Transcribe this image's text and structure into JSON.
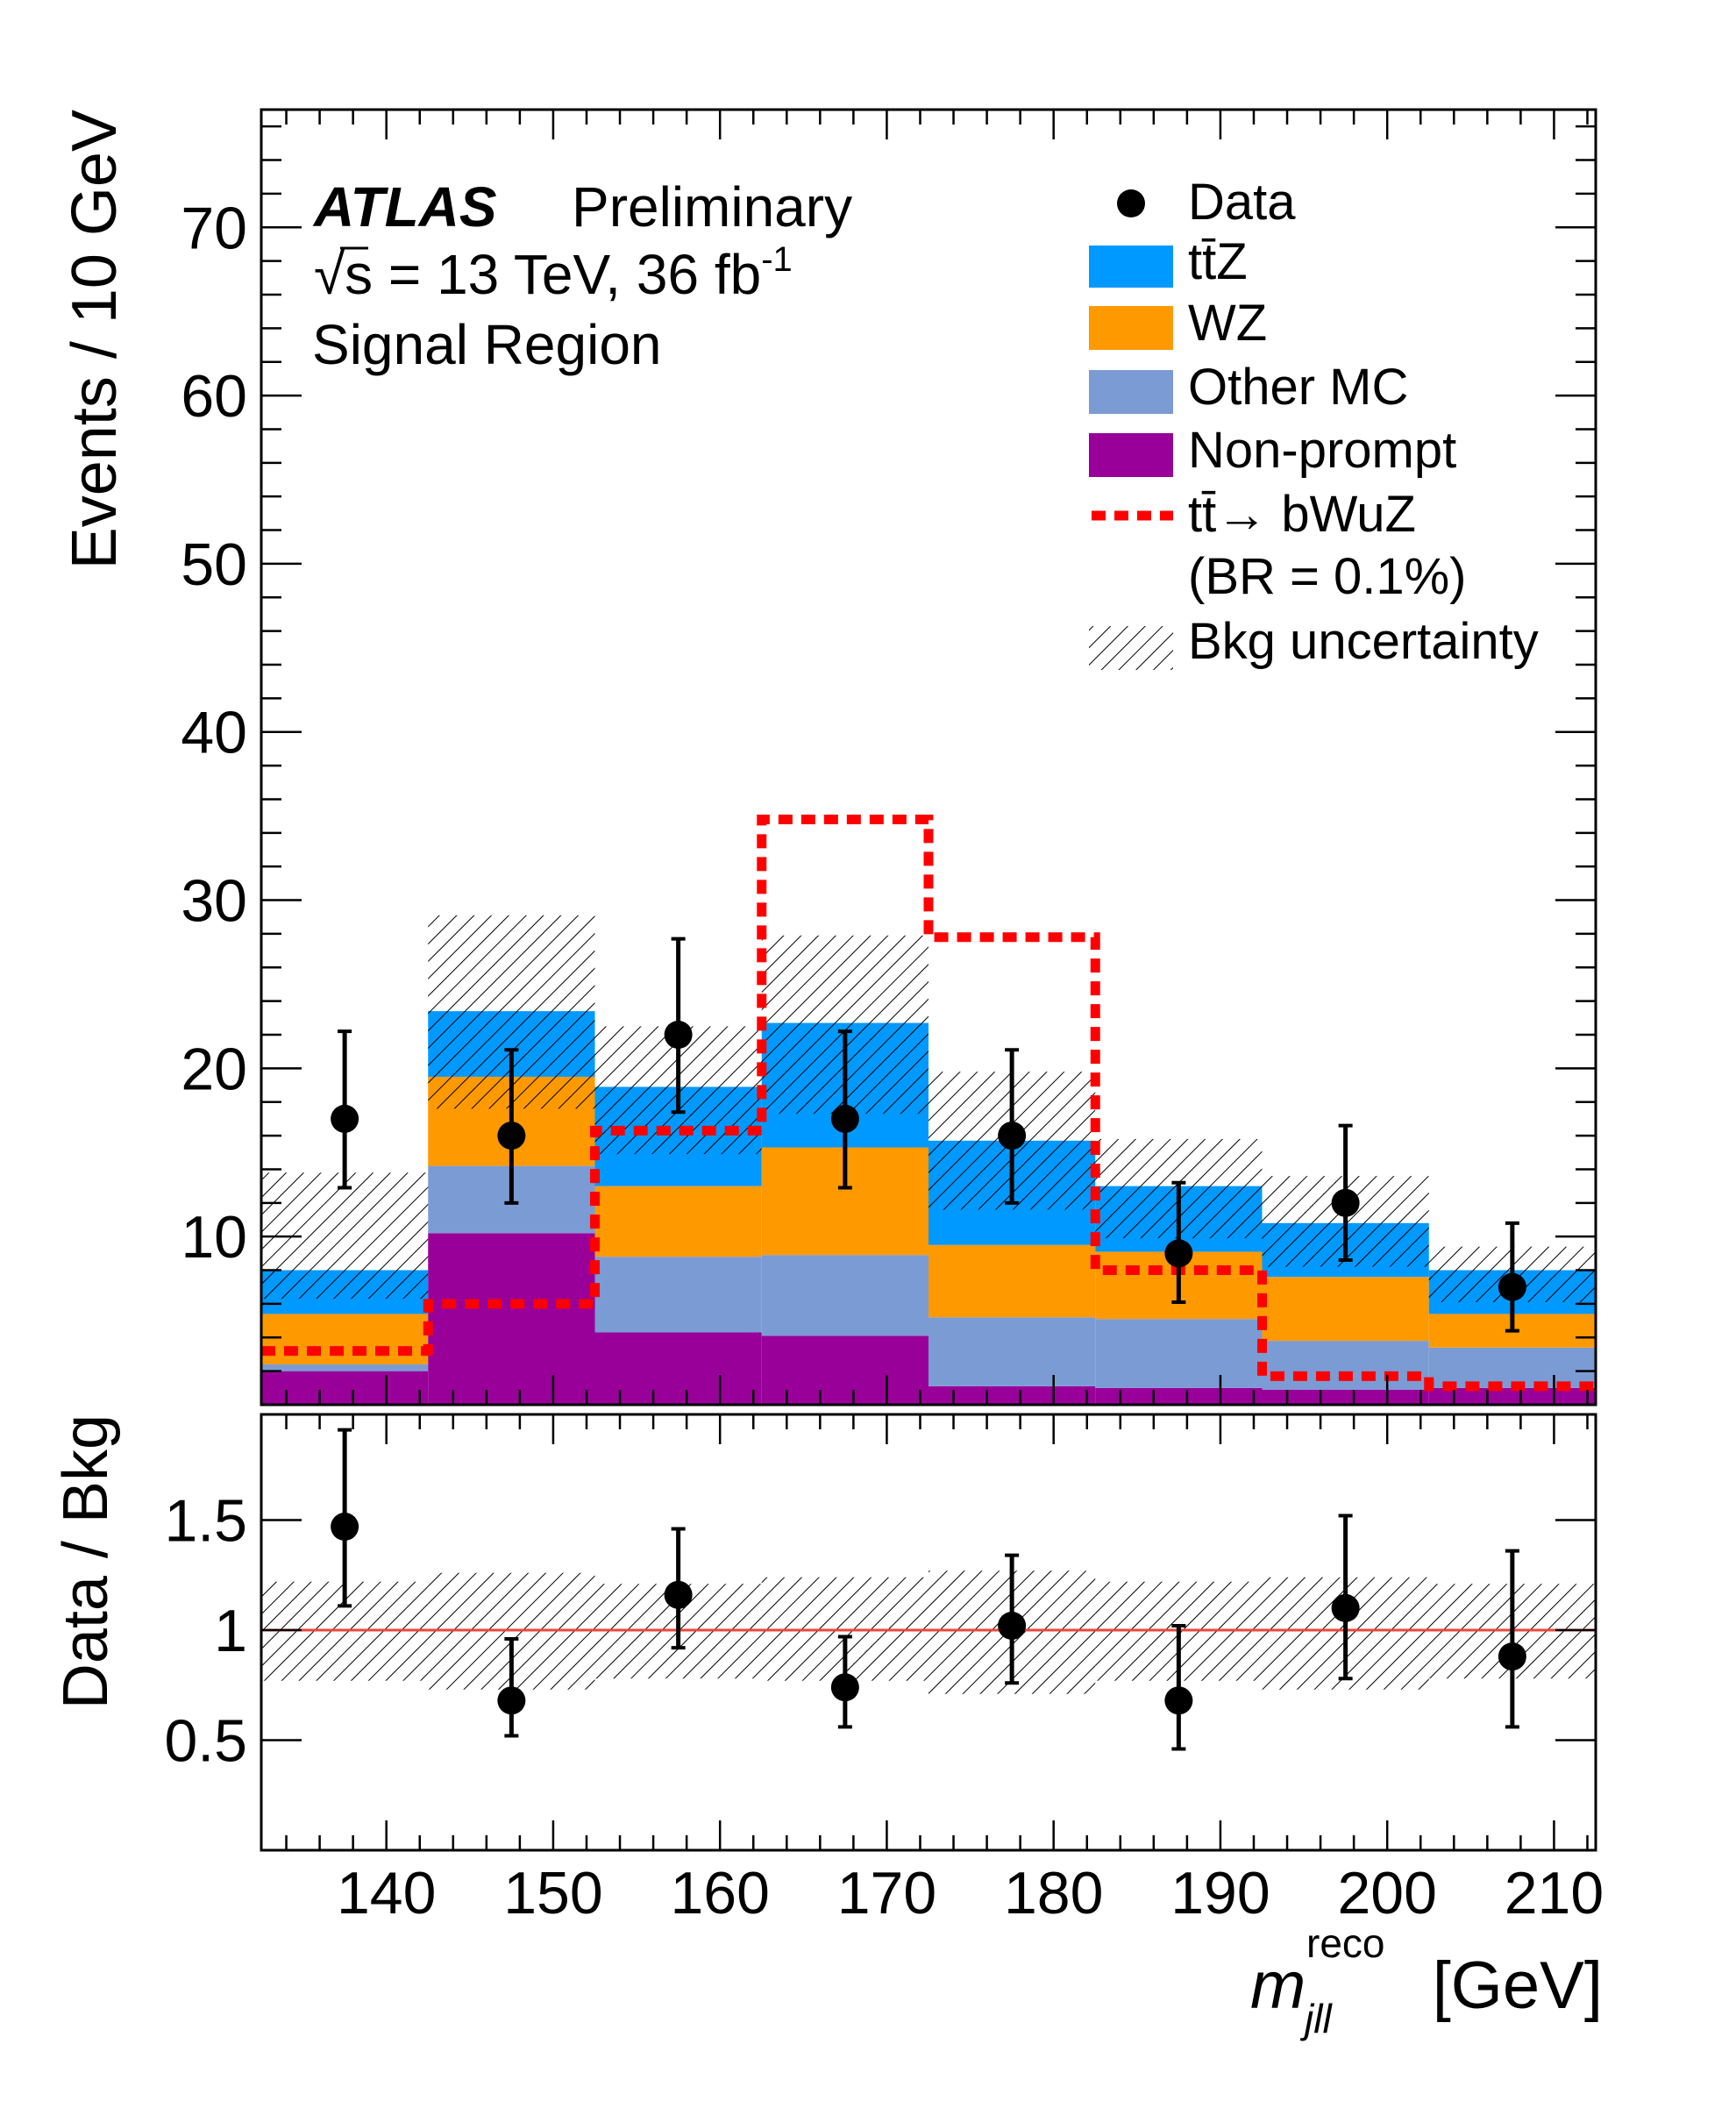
{
  "chart_data": [
    {
      "type": "bar",
      "stacked": true,
      "bin_edges": [
        132.5,
        142.5,
        152.5,
        162.5,
        172.5,
        182.5,
        192.5,
        202.5,
        212.5
      ],
      "series": [
        {
          "name": "Non-prompt",
          "color": "#990099",
          "values": [
            2.0,
            10.2,
            4.3,
            4.1,
            1.1,
            1.0,
            0.9,
            1.0
          ]
        },
        {
          "name": "Other MC",
          "color": "#7b9bd4",
          "values": [
            0.4,
            4.0,
            4.5,
            4.8,
            4.1,
            4.1,
            2.9,
            2.4
          ]
        },
        {
          "name": "WZ",
          "color": "#ff9900",
          "values": [
            3.0,
            5.3,
            4.2,
            6.4,
            4.3,
            4.0,
            3.8,
            2.0
          ]
        },
        {
          "name": "tt̄Z",
          "color": "#0099ff",
          "values": [
            2.6,
            3.9,
            5.9,
            7.4,
            6.2,
            3.9,
            3.2,
            2.6
          ]
        }
      ],
      "signal": {
        "name": "tt̄→ bWuZ",
        "note": "(BR = 0.1%)",
        "color": "#ff0000",
        "values": [
          3.2,
          6.0,
          16.3,
          34.8,
          27.8,
          8.0,
          1.7,
          1.1
        ]
      },
      "bkg_uncertainty": {
        "name": "Bkg uncertainty",
        "up": [
          13.8,
          29.1,
          22.5,
          27.9,
          19.8,
          15.8,
          13.6,
          9.4
        ],
        "down": [
          6.3,
          17.6,
          14.9,
          17.3,
          11.6,
          9.9,
          8.2,
          6.1
        ]
      },
      "data": {
        "name": "Data",
        "x": [
          137.5,
          147.5,
          157.5,
          167.5,
          177.5,
          187.5,
          197.5,
          207.5
        ],
        "y": [
          17,
          16,
          22,
          17,
          16,
          9,
          12,
          7
        ],
        "err_up": [
          5.2,
          5.1,
          5.7,
          5.2,
          5.1,
          4.2,
          4.6,
          3.8
        ],
        "err_down": [
          4.1,
          4.0,
          4.6,
          4.1,
          4.0,
          2.9,
          3.4,
          2.6
        ]
      },
      "xlim": [
        132.5,
        212.5
      ],
      "ylim": [
        0,
        77
      ],
      "yticks": [
        10,
        20,
        30,
        40,
        50,
        60,
        70
      ],
      "ylabel": "Events / 10 GeV",
      "legend_position": "top-right",
      "annotations": {
        "experiment": "ATLAS",
        "status": "Preliminary",
        "energy": "√s = 13 TeV, 36 fb",
        "lumi_sup": "-1",
        "region": "Signal Region"
      }
    },
    {
      "type": "scatter",
      "x": [
        137.5,
        147.5,
        157.5,
        167.5,
        177.5,
        187.5,
        197.5,
        207.5
      ],
      "y": [
        1.47,
        0.68,
        1.16,
        0.74,
        1.02,
        0.68,
        1.1,
        0.88
      ],
      "err_up": [
        0.44,
        0.28,
        0.3,
        0.23,
        0.32,
        0.34,
        0.42,
        0.48
      ],
      "err_down": [
        0.36,
        0.16,
        0.24,
        0.18,
        0.26,
        0.22,
        0.32,
        0.32
      ],
      "bkg_band_up": [
        1.22,
        1.26,
        1.21,
        1.24,
        1.27,
        1.22,
        1.24,
        1.21
      ],
      "bkg_band_down": [
        0.77,
        0.73,
        0.78,
        0.77,
        0.71,
        0.77,
        0.73,
        0.78
      ],
      "reference_line": 1,
      "xlim": [
        132.5,
        212.5
      ],
      "ylim": [
        0,
        1.98
      ],
      "yticks": [
        0.5,
        1,
        1.5
      ],
      "ytick_labels": [
        "0.5",
        "1",
        "1.5"
      ],
      "xticks": [
        140,
        150,
        160,
        170,
        180,
        190,
        200,
        210
      ],
      "ylabel": "Data / Bkg",
      "xlabel_main": "m",
      "xlabel_sup": "reco",
      "xlabel_sub": "jll",
      "xlabel_unit": "[GeV]"
    }
  ]
}
